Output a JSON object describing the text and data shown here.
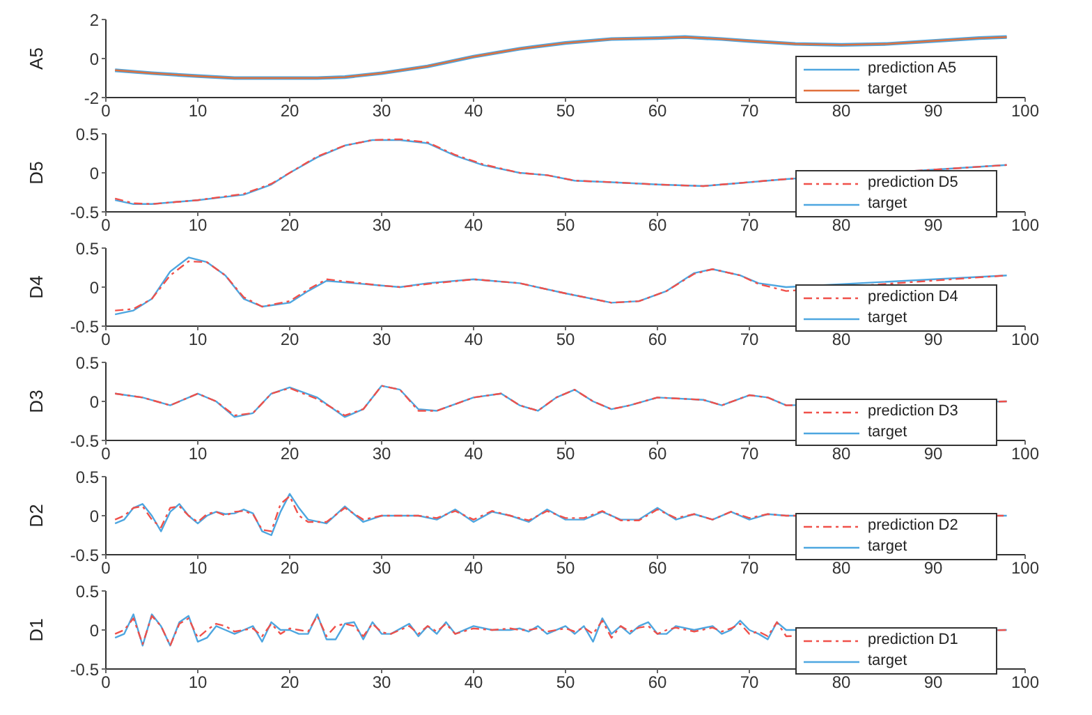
{
  "chart_data": [
    {
      "type": "line",
      "ylabel": "A5",
      "x": [
        1,
        5,
        10,
        14,
        20,
        23,
        26,
        30,
        35,
        40,
        45,
        50,
        55,
        60,
        63,
        67,
        70,
        75,
        80,
        85,
        90,
        95,
        98
      ],
      "xlim": [
        0,
        100
      ],
      "xticks": [
        0,
        10,
        20,
        30,
        40,
        50,
        60,
        70,
        80,
        90,
        100
      ],
      "ylim": [
        -2,
        2
      ],
      "yticks": [
        -2,
        0,
        2
      ],
      "legend": "bottom right",
      "marker": "none",
      "series": [
        {
          "name": "prediction A5",
          "color": "#4da6e0",
          "line_style": "solid",
          "values": [
            -0.6,
            -0.75,
            -0.9,
            -1.0,
            -1.0,
            -1.0,
            -0.95,
            -0.75,
            -0.4,
            0.1,
            0.5,
            0.8,
            1.0,
            1.05,
            1.1,
            1.0,
            0.9,
            0.75,
            0.7,
            0.75,
            0.9,
            1.05,
            1.1
          ]
        },
        {
          "name": "target",
          "color": "#e0703c",
          "line_style": "solid",
          "values": [
            -0.6,
            -0.75,
            -0.9,
            -1.0,
            -1.0,
            -1.0,
            -0.95,
            -0.75,
            -0.4,
            0.1,
            0.5,
            0.8,
            1.0,
            1.05,
            1.1,
            1.0,
            0.9,
            0.75,
            0.7,
            0.75,
            0.9,
            1.05,
            1.1
          ]
        }
      ]
    },
    {
      "type": "line",
      "ylabel": "D5",
      "x": [
        1,
        3,
        5,
        10,
        15,
        18,
        20,
        23,
        26,
        29,
        32,
        35,
        38,
        41,
        45,
        48,
        51,
        55,
        60,
        65,
        70,
        74,
        98
      ],
      "xlim": [
        0,
        100
      ],
      "xticks": [
        0,
        10,
        20,
        30,
        40,
        50,
        60,
        70,
        80,
        90,
        100
      ],
      "ylim": [
        -0.5,
        0.5
      ],
      "yticks": [
        -0.5,
        0,
        0.5
      ],
      "legend": "bottom right",
      "marker": "none",
      "series": [
        {
          "name": "prediction D5",
          "color": "#f0504a",
          "line_style": "dashed",
          "values": [
            -0.33,
            -0.39,
            -0.4,
            -0.35,
            -0.27,
            -0.14,
            0.0,
            0.21,
            0.35,
            0.42,
            0.43,
            0.39,
            0.23,
            0.11,
            0.0,
            -0.03,
            -0.1,
            -0.12,
            -0.15,
            -0.17,
            -0.12,
            -0.08,
            0.1
          ]
        },
        {
          "name": "target",
          "color": "#4da6e0",
          "line_style": "solid",
          "values": [
            -0.35,
            -0.4,
            -0.4,
            -0.35,
            -0.28,
            -0.15,
            0.0,
            0.2,
            0.35,
            0.42,
            0.42,
            0.38,
            0.22,
            0.1,
            0.0,
            -0.03,
            -0.1,
            -0.12,
            -0.15,
            -0.17,
            -0.12,
            -0.08,
            0.1
          ]
        }
      ]
    },
    {
      "type": "line",
      "ylabel": "D4",
      "x": [
        1,
        3,
        5,
        7,
        9,
        11,
        13,
        15,
        17,
        20,
        22,
        24,
        27,
        30,
        32,
        35,
        40,
        45,
        50,
        55,
        58,
        61,
        64,
        66,
        69,
        71,
        74,
        98
      ],
      "xlim": [
        0,
        100
      ],
      "xticks": [
        0,
        10,
        20,
        30,
        40,
        50,
        60,
        70,
        80,
        90,
        100
      ],
      "ylim": [
        -0.5,
        0.5
      ],
      "yticks": [
        -0.5,
        0,
        0.5
      ],
      "legend": "bottom right",
      "marker": "none",
      "series": [
        {
          "name": "prediction D4",
          "color": "#f0504a",
          "line_style": "dashed",
          "values": [
            -0.3,
            -0.28,
            -0.15,
            0.15,
            0.33,
            0.32,
            0.15,
            -0.13,
            -0.25,
            -0.18,
            -0.03,
            0.1,
            0.06,
            0.02,
            0.0,
            0.04,
            0.1,
            0.05,
            -0.08,
            -0.2,
            -0.18,
            -0.05,
            0.17,
            0.23,
            0.15,
            0.04,
            -0.05,
            0.15
          ]
        },
        {
          "name": "target",
          "color": "#4da6e0",
          "line_style": "solid",
          "values": [
            -0.35,
            -0.3,
            -0.15,
            0.2,
            0.38,
            0.32,
            0.15,
            -0.15,
            -0.25,
            -0.2,
            -0.05,
            0.08,
            0.05,
            0.02,
            0.0,
            0.05,
            0.1,
            0.05,
            -0.08,
            -0.2,
            -0.18,
            -0.05,
            0.18,
            0.23,
            0.15,
            0.05,
            0.0,
            0.15
          ]
        }
      ]
    },
    {
      "type": "line",
      "ylabel": "D3",
      "x": [
        1,
        4,
        7,
        10,
        12,
        14,
        16,
        18,
        20,
        23,
        26,
        28,
        30,
        32,
        34,
        36,
        40,
        43,
        45,
        47,
        49,
        51,
        53,
        55,
        57,
        60,
        65,
        67,
        70,
        72,
        74,
        98
      ],
      "xlim": [
        0,
        100
      ],
      "xticks": [
        0,
        10,
        20,
        30,
        40,
        50,
        60,
        70,
        80,
        90,
        100
      ],
      "ylim": [
        -0.5,
        0.5
      ],
      "yticks": [
        -0.5,
        0,
        0.5
      ],
      "legend": "bottom right",
      "marker": "none",
      "series": [
        {
          "name": "prediction D3",
          "color": "#f0504a",
          "line_style": "dashed",
          "values": [
            0.1,
            0.05,
            -0.05,
            0.1,
            0.0,
            -0.18,
            -0.15,
            0.1,
            0.17,
            0.03,
            -0.18,
            -0.1,
            0.2,
            0.15,
            -0.12,
            -0.12,
            0.05,
            0.1,
            -0.05,
            -0.12,
            0.05,
            0.15,
            0.0,
            -0.1,
            -0.05,
            0.05,
            0.02,
            -0.05,
            0.08,
            0.05,
            -0.05,
            0.0
          ]
        },
        {
          "name": "target",
          "color": "#4da6e0",
          "line_style": "solid",
          "values": [
            0.1,
            0.05,
            -0.05,
            0.1,
            0.0,
            -0.2,
            -0.15,
            0.1,
            0.18,
            0.05,
            -0.2,
            -0.1,
            0.2,
            0.15,
            -0.1,
            -0.12,
            0.05,
            0.1,
            -0.05,
            -0.12,
            0.05,
            0.15,
            0.0,
            -0.1,
            -0.05,
            0.05,
            0.02,
            -0.05,
            0.08,
            0.05,
            -0.05,
            0.0
          ]
        }
      ]
    },
    {
      "type": "line",
      "ylabel": "D2",
      "x": [
        1,
        2,
        3,
        4,
        5,
        6,
        7,
        8,
        9,
        10,
        11,
        12,
        13,
        14,
        15,
        16,
        17,
        18,
        19,
        20,
        21,
        22,
        24,
        26,
        28,
        30,
        34,
        36,
        38,
        40,
        42,
        44,
        46,
        48,
        50,
        52,
        54,
        56,
        58,
        60,
        62,
        64,
        66,
        68,
        70,
        72,
        74,
        98
      ],
      "xlim": [
        0,
        100
      ],
      "xticks": [
        0,
        10,
        20,
        30,
        40,
        50,
        60,
        70,
        80,
        90,
        100
      ],
      "ylim": [
        -0.5,
        0.5
      ],
      "yticks": [
        -0.5,
        0,
        0.5
      ],
      "legend": "bottom right",
      "marker": "none",
      "series": [
        {
          "name": "prediction D2",
          "color": "#f0504a",
          "line_style": "dashed",
          "values": [
            -0.05,
            0.0,
            0.1,
            0.12,
            -0.05,
            -0.15,
            0.1,
            0.12,
            0.0,
            -0.08,
            0.02,
            0.05,
            0.0,
            0.05,
            0.06,
            0.02,
            -0.18,
            -0.2,
            0.15,
            0.25,
            0.0,
            -0.08,
            -0.08,
            0.1,
            -0.05,
            0.0,
            0.0,
            -0.03,
            0.06,
            -0.05,
            0.06,
            0.0,
            -0.06,
            0.06,
            -0.03,
            -0.03,
            0.06,
            -0.06,
            -0.06,
            0.08,
            -0.03,
            0.02,
            -0.05,
            0.05,
            -0.03,
            0.02,
            0.0,
            0.0
          ]
        },
        {
          "name": "target",
          "color": "#4da6e0",
          "line_style": "solid",
          "values": [
            -0.1,
            -0.05,
            0.1,
            0.15,
            0.0,
            -0.2,
            0.05,
            0.15,
            0.0,
            -0.1,
            0.0,
            0.05,
            0.02,
            0.03,
            0.08,
            0.03,
            -0.2,
            -0.25,
            0.05,
            0.28,
            0.1,
            -0.05,
            -0.1,
            0.12,
            -0.08,
            0.0,
            0.0,
            -0.05,
            0.08,
            -0.08,
            0.05,
            0.0,
            -0.08,
            0.08,
            -0.05,
            -0.05,
            0.05,
            -0.05,
            -0.05,
            0.1,
            -0.05,
            0.02,
            -0.05,
            0.05,
            -0.05,
            0.02,
            0.0,
            0.0
          ]
        }
      ]
    },
    {
      "type": "line",
      "ylabel": "D1",
      "x": [
        1,
        2,
        3,
        4,
        5,
        6,
        7,
        8,
        9,
        10,
        11,
        12,
        13,
        14,
        15,
        16,
        17,
        18,
        19,
        20,
        21,
        22,
        23,
        24,
        25,
        26,
        27,
        28,
        29,
        30,
        31,
        33,
        34,
        35,
        36,
        37,
        38,
        40,
        42,
        44,
        45,
        46,
        47,
        48,
        50,
        51,
        52,
        53,
        54,
        55,
        56,
        57,
        58,
        59,
        60,
        61,
        62,
        64,
        66,
        67,
        68,
        69,
        70,
        71,
        72,
        73,
        74,
        98
      ],
      "xlim": [
        0,
        100
      ],
      "xticks": [
        0,
        10,
        20,
        30,
        40,
        50,
        60,
        70,
        80,
        90,
        100
      ],
      "ylim": [
        -0.5,
        0.5
      ],
      "yticks": [
        -0.5,
        0,
        0.5
      ],
      "legend": "bottom right",
      "marker": "none",
      "series": [
        {
          "name": "prediction D1",
          "color": "#f0504a",
          "line_style": "dashed",
          "values": [
            -0.05,
            0.0,
            0.15,
            -0.18,
            0.18,
            0.05,
            -0.2,
            0.08,
            0.15,
            -0.1,
            0.0,
            0.08,
            0.05,
            -0.02,
            0.0,
            0.02,
            -0.08,
            0.08,
            -0.05,
            0.02,
            0.0,
            -0.02,
            0.18,
            -0.08,
            0.05,
            0.08,
            0.05,
            -0.08,
            0.08,
            -0.03,
            -0.05,
            0.05,
            -0.05,
            0.05,
            -0.02,
            0.08,
            -0.05,
            0.02,
            0.0,
            0.02,
            0.0,
            0.0,
            0.02,
            -0.02,
            0.02,
            -0.02,
            0.03,
            -0.05,
            0.12,
            -0.1,
            0.05,
            -0.02,
            0.03,
            0.05,
            -0.05,
            0.0,
            0.03,
            -0.02,
            0.03,
            -0.02,
            0.02,
            0.08,
            -0.05,
            -0.02,
            -0.08,
            0.1,
            -0.08,
            0.0
          ]
        },
        {
          "name": "target",
          "color": "#4da6e0",
          "line_style": "solid",
          "values": [
            -0.1,
            -0.05,
            0.2,
            -0.2,
            0.2,
            0.05,
            -0.2,
            0.1,
            0.18,
            -0.15,
            -0.1,
            0.05,
            0.0,
            -0.05,
            0.0,
            0.05,
            -0.15,
            0.1,
            0.0,
            0.0,
            -0.05,
            -0.05,
            0.2,
            -0.12,
            -0.12,
            0.08,
            0.1,
            -0.12,
            0.1,
            -0.05,
            -0.05,
            0.08,
            -0.08,
            0.05,
            -0.05,
            0.1,
            -0.05,
            0.05,
            0.0,
            0.0,
            0.02,
            -0.02,
            0.05,
            -0.05,
            0.05,
            -0.05,
            0.05,
            -0.15,
            0.15,
            -0.05,
            0.05,
            -0.05,
            0.05,
            0.1,
            -0.05,
            -0.05,
            0.05,
            0.0,
            0.05,
            -0.05,
            0.0,
            0.12,
            0.0,
            -0.05,
            -0.12,
            0.1,
            0.0,
            0.0
          ]
        }
      ]
    }
  ]
}
